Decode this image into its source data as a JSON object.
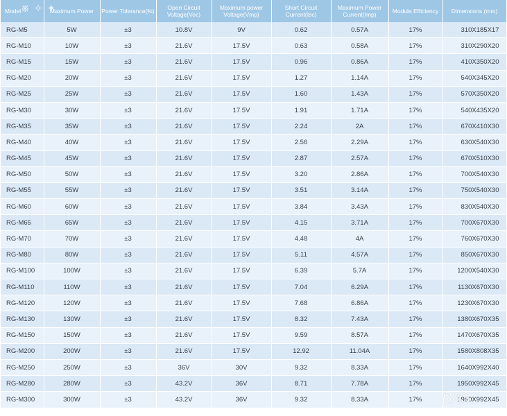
{
  "table": {
    "headers": [
      "Model",
      "Maximum Power",
      "Power Tolerance(%)",
      "Open Circuit Voltage(Voc)",
      "Maximum power Voltage(Vmp)",
      "Short Circuit Current(Isc)",
      "Maximum Power Current(Imp)",
      "Module Efficiency",
      "Dimensions (mm)"
    ],
    "rows": [
      [
        "RG-M5",
        "5W",
        "±3",
        "10.8V",
        "9V",
        "0.62",
        "0.57A",
        "17%",
        "310X185X17"
      ],
      [
        "RG-M10",
        "10W",
        "±3",
        "21.6V",
        "17.5V",
        "0.63",
        "0.58A",
        "17%",
        "310X290X20"
      ],
      [
        "RG-M15",
        "15W",
        "±3",
        "21.6V",
        "17.5V",
        "0.96",
        "0.86A",
        "17%",
        "410X350X20"
      ],
      [
        "RG-M20",
        "20W",
        "±3",
        "21.6V",
        "17.5V",
        "1.27",
        "1.14A",
        "17%",
        "540X345X20"
      ],
      [
        "RG-M25",
        "25W",
        "±3",
        "21.6V",
        "17.5V",
        "1.60",
        "1.43A",
        "17%",
        "570X350X20"
      ],
      [
        "RG-M30",
        "30W",
        "±3",
        "21.6V",
        "17.5V",
        "1.91",
        "1.71A",
        "17%",
        "540X435X20"
      ],
      [
        "RG-M35",
        "35W",
        "±3",
        "21.6V",
        "17.5V",
        "2.24",
        "2A",
        "17%",
        "670X410X30"
      ],
      [
        "RG-M40",
        "40W",
        "±3",
        "21.6V",
        "17.5V",
        "2.56",
        "2.29A",
        "17%",
        "630X540X30"
      ],
      [
        "RG-M45",
        "45W",
        "±3",
        "21.6V",
        "17.5V",
        "2.87",
        "2.57A",
        "17%",
        "670X510X30"
      ],
      [
        "RG-M50",
        "50W",
        "±3",
        "21.6V",
        "17.5V",
        "3.20",
        "2.86A",
        "17%",
        "700X540X30"
      ],
      [
        "RG-M55",
        "55W",
        "±3",
        "21.6V",
        "17.5V",
        "3.51",
        "3.14A",
        "17%",
        "750X540X30"
      ],
      [
        "RG-M60",
        "60W",
        "±3",
        "21.6V",
        "17.5V",
        "3.84",
        "3.43A",
        "17%",
        "830X540X30"
      ],
      [
        "RG-M65",
        "65W",
        "±3",
        "21.6V",
        "17.5V",
        "4.15",
        "3.71A",
        "17%",
        "700X670X30"
      ],
      [
        "RG-M70",
        "70W",
        "±3",
        "21.6V",
        "17.5V",
        "4.48",
        "4A",
        "17%",
        "760X670X30"
      ],
      [
        "RG-M80",
        "80W",
        "±3",
        "21.6V",
        "17.5V",
        "5.11",
        "4.57A",
        "17%",
        "850X670X30"
      ],
      [
        "RG-M100",
        "100W",
        "±3",
        "21.6V",
        "17.5V",
        "6.39",
        "5.7A",
        "17%",
        "1200X540X30"
      ],
      [
        "RG-M110",
        "110W",
        "±3",
        "21.6V",
        "17.5V",
        "7.04",
        "6.29A",
        "17%",
        "1130X670X30"
      ],
      [
        "RG-M120",
        "120W",
        "±3",
        "21.6V",
        "17.5V",
        "7.68",
        "6.86A",
        "17%",
        "1230X670X30"
      ],
      [
        "RG-M130",
        "130W",
        "±3",
        "21.6V",
        "17.5V",
        "8.32",
        "7.43A",
        "17%",
        "1380X670X35"
      ],
      [
        "RG-M150",
        "150W",
        "±3",
        "21.6V",
        "17.5V",
        "9.59",
        "8.57A",
        "17%",
        "1470X670X35"
      ],
      [
        "RG-M200",
        "200W",
        "±3",
        "21.6V",
        "17.5V",
        "12.92",
        "11.04A",
        "17%",
        "1580X808X35"
      ],
      [
        "RG-M250",
        "250W",
        "±3",
        "36V",
        "30V",
        "9.32",
        "8.33A",
        "17%",
        "1640X992X40"
      ],
      [
        "RG-M280",
        "280W",
        "±3",
        "43.2V",
        "36V",
        "8.71",
        "7.78A",
        "17%",
        "1950X992X45"
      ],
      [
        "RG-M300",
        "300W",
        "±3",
        "43.2V",
        "36V",
        "9.32",
        "8.33A",
        "17%",
        "1950X992X45"
      ]
    ]
  },
  "colors": {
    "header_bg": "#9ec7e6",
    "row_odd": "#dbe9f7",
    "row_even": "#e9f2fa",
    "text": "#3a3f48"
  }
}
